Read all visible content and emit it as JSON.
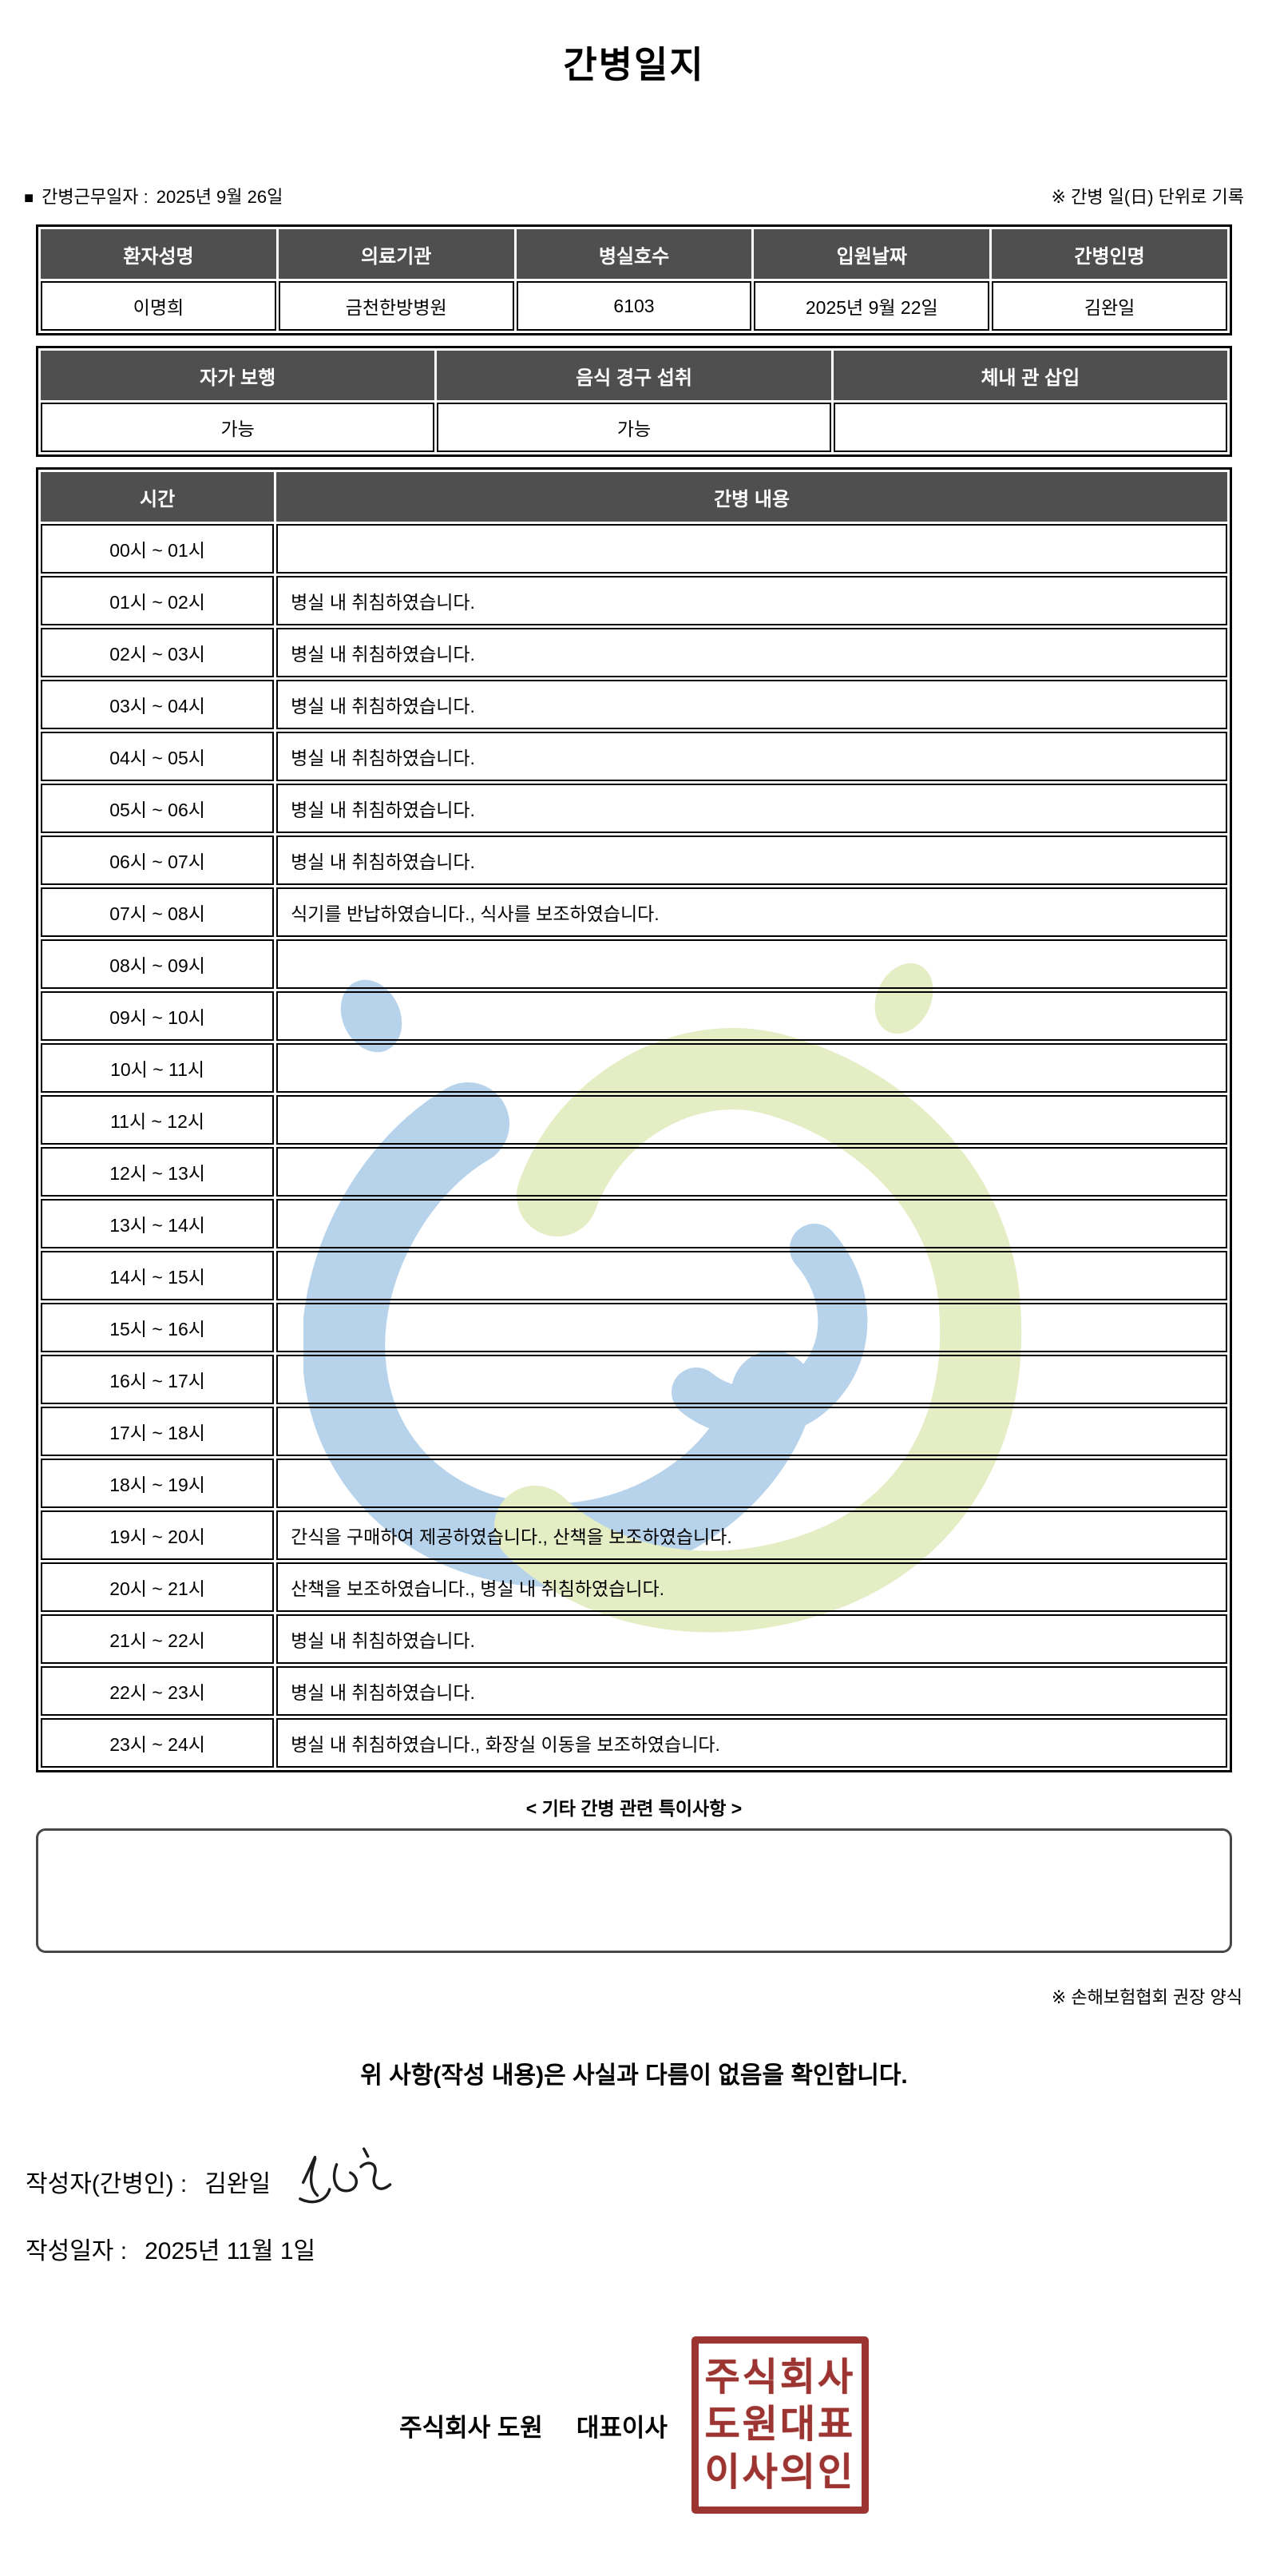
{
  "title": "간병일지",
  "meta": {
    "square_icon": "■",
    "work_date_label": "간병근무일자 :",
    "work_date_value": "2025년 9월 26일",
    "unit_note": "※ 간병 일(日) 단위로 기록"
  },
  "patient_table": {
    "headers": [
      "환자성명",
      "의료기관",
      "병실호수",
      "입원날짜",
      "간병인명"
    ],
    "values": [
      "이명희",
      "금천한방병원",
      "6103",
      "2025년 9월 22일",
      "김완일"
    ]
  },
  "condition_table": {
    "headers": [
      "자가 보행",
      "음식 경구 섭취",
      "체내 관 삽입"
    ],
    "values": [
      "가능",
      "가능",
      ""
    ]
  },
  "care_log": {
    "time_header": "시간",
    "content_header": "간병 내용",
    "rows": [
      {
        "time": "00시 ~ 01시",
        "content": ""
      },
      {
        "time": "01시 ~ 02시",
        "content": "병실 내 취침하였습니다."
      },
      {
        "time": "02시 ~ 03시",
        "content": "병실 내 취침하였습니다."
      },
      {
        "time": "03시 ~ 04시",
        "content": "병실 내 취침하였습니다."
      },
      {
        "time": "04시 ~ 05시",
        "content": "병실 내 취침하였습니다."
      },
      {
        "time": "05시 ~ 06시",
        "content": "병실 내 취침하였습니다."
      },
      {
        "time": "06시 ~ 07시",
        "content": "병실 내 취침하였습니다."
      },
      {
        "time": "07시 ~ 08시",
        "content": "식기를 반납하였습니다., 식사를 보조하였습니다."
      },
      {
        "time": "08시 ~ 09시",
        "content": ""
      },
      {
        "time": "09시 ~ 10시",
        "content": ""
      },
      {
        "time": "10시 ~ 11시",
        "content": ""
      },
      {
        "time": "11시 ~ 12시",
        "content": ""
      },
      {
        "time": "12시 ~ 13시",
        "content": ""
      },
      {
        "time": "13시 ~ 14시",
        "content": ""
      },
      {
        "time": "14시 ~ 15시",
        "content": ""
      },
      {
        "time": "15시 ~ 16시",
        "content": ""
      },
      {
        "time": "16시 ~ 17시",
        "content": ""
      },
      {
        "time": "17시 ~ 18시",
        "content": ""
      },
      {
        "time": "18시 ~ 19시",
        "content": ""
      },
      {
        "time": "19시 ~ 20시",
        "content": "간식을 구매하여 제공하였습니다., 산책을 보조하였습니다."
      },
      {
        "time": "20시 ~ 21시",
        "content": "산책을 보조하였습니다., 병실 내 취침하였습니다."
      },
      {
        "time": "21시 ~ 22시",
        "content": "병실 내 취침하였습니다."
      },
      {
        "time": "22시 ~ 23시",
        "content": "병실 내 취침하였습니다."
      },
      {
        "time": "23시 ~ 24시",
        "content": "병실 내 취침하였습니다., 화장실 이동을 보조하였습니다."
      }
    ]
  },
  "notes_section": {
    "heading": "< 기타 간병 관련 특이사항 >",
    "content": ""
  },
  "form_note": "※ 손해보험협회 권장 양식",
  "confirmation_text": "위 사항(작성 내용)은 사실과 다름이 없음을 확인합니다.",
  "signature_block": {
    "writer_label": "작성자(간병인) :",
    "writer_name": "김완일",
    "date_label": "작성일자 :",
    "date_value": "2025년 11월 1일"
  },
  "company_block": {
    "company_name": "주식회사 도원",
    "title": "대표이사",
    "stamp_lines": [
      "주식회사",
      "도원대표",
      "이사의인"
    ]
  },
  "colors": {
    "header_bg": "#4f4f4f",
    "stamp_red": "#9c3431",
    "watermark_blue": "#b7d3ec",
    "watermark_green": "#e4edc4"
  }
}
